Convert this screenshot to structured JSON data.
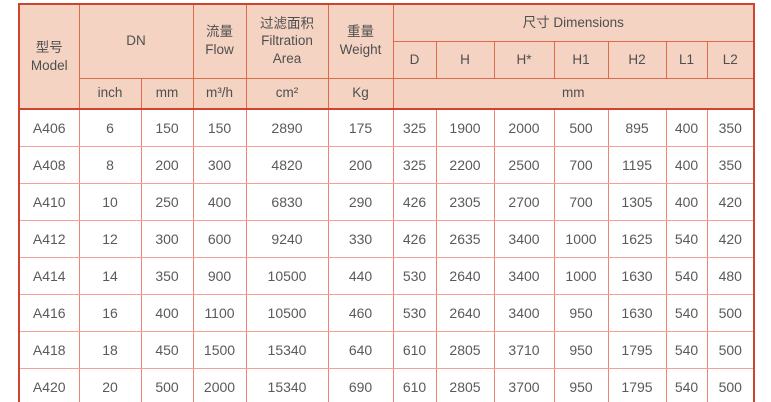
{
  "table": {
    "header": {
      "model_zh": "型号",
      "model_en": "Model",
      "dn": "DN",
      "flow_zh": "流量",
      "flow_en": "Flow",
      "filtration_zh": "过滤面积",
      "filtration_en": "Filtration Area",
      "weight_zh": "重量",
      "weight_en": "Weight",
      "dimensions": "尺寸 Dimensions",
      "dn_sub": [
        "inch",
        "mm"
      ],
      "dim_sub": [
        "D",
        "H",
        "H*",
        "H1",
        "H2",
        "L1",
        "L2"
      ],
      "units": {
        "flow": "m³/h",
        "filtration": "cm²",
        "weight": "Kg",
        "dimensions": "mm"
      }
    },
    "columns": [
      "Model",
      "DN inch",
      "DN mm",
      "Flow m³/h",
      "Filtration Area cm²",
      "Weight Kg",
      "D",
      "H",
      "H*",
      "H1",
      "H2",
      "L1",
      "L2"
    ],
    "rows": [
      [
        "A406",
        "6",
        "150",
        "150",
        "2890",
        "175",
        "325",
        "1900",
        "2000",
        "500",
        "895",
        "400",
        "350"
      ],
      [
        "A408",
        "8",
        "200",
        "300",
        "4820",
        "200",
        "325",
        "2200",
        "2500",
        "700",
        "1195",
        "400",
        "350"
      ],
      [
        "A410",
        "10",
        "250",
        "400",
        "6830",
        "290",
        "426",
        "2305",
        "2700",
        "700",
        "1305",
        "400",
        "420"
      ],
      [
        "A412",
        "12",
        "300",
        "600",
        "9240",
        "330",
        "426",
        "2635",
        "3400",
        "1000",
        "1625",
        "540",
        "420"
      ],
      [
        "A414",
        "14",
        "350",
        "900",
        "10500",
        "440",
        "530",
        "2640",
        "3400",
        "1000",
        "1630",
        "540",
        "480"
      ],
      [
        "A416",
        "16",
        "400",
        "1100",
        "10500",
        "460",
        "530",
        "2640",
        "3400",
        "950",
        "1630",
        "540",
        "500"
      ],
      [
        "A418",
        "18",
        "450",
        "1500",
        "15340",
        "640",
        "610",
        "2805",
        "3710",
        "950",
        "1795",
        "540",
        "500"
      ],
      [
        "A420",
        "20",
        "500",
        "2000",
        "15340",
        "690",
        "610",
        "2805",
        "3700",
        "950",
        "1795",
        "540",
        "500"
      ]
    ],
    "colors": {
      "header_bg": "#f4d3c3",
      "header_border": "#dd6a4a",
      "outer_border": "#d0442f",
      "data_v_border": "#ee8478",
      "data_h_border": "#f3a198",
      "header_text": "#4f4f4f",
      "data_text": "#5a5a5a"
    }
  }
}
